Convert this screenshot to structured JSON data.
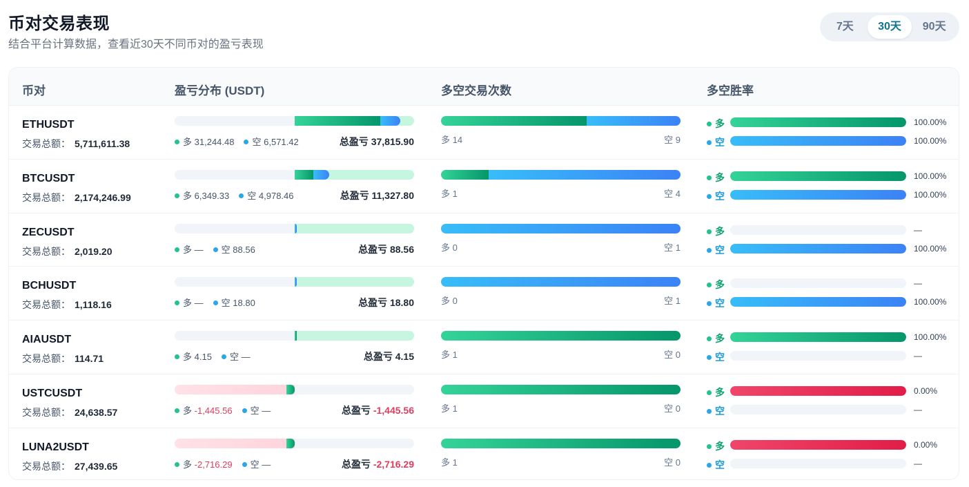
{
  "header": {
    "title": "币对交易表现",
    "subtitle": "结合平台计算数据，查看近30天不同币对的盈亏表现"
  },
  "range": {
    "options": [
      "7天",
      "30天",
      "90天"
    ],
    "active": "30天"
  },
  "table": {
    "columns": [
      "币对",
      "盈亏分布 (USDT)",
      "多空交易次数",
      "多空胜率"
    ],
    "volume_label": "交易总额：",
    "long_label": "多",
    "short_label": "空",
    "total_label": "总盈亏",
    "rows": [
      {
        "pair": "ETHUSDT",
        "volume": "5,711,611.38",
        "long_pnl": "31,244.48",
        "short_pnl": "6,571.42",
        "total_pnl": "37,815.90",
        "long_pnl_value": 31244.48,
        "short_pnl_value": 6571.42,
        "long_count": 14,
        "short_count": 9,
        "long_win": "100.00%",
        "short_win": "100.00%",
        "long_win_value": 100,
        "short_win_value": 100
      },
      {
        "pair": "BTCUSDT",
        "volume": "2,174,246.99",
        "long_pnl": "6,349.33",
        "short_pnl": "4,978.46",
        "total_pnl": "11,327.80",
        "long_pnl_value": 6349.33,
        "short_pnl_value": 4978.46,
        "long_count": 1,
        "short_count": 4,
        "long_win": "100.00%",
        "short_win": "100.00%",
        "long_win_value": 100,
        "short_win_value": 100
      },
      {
        "pair": "ZECUSDT",
        "volume": "2,019.20",
        "long_pnl": "—",
        "short_pnl": "88.56",
        "total_pnl": "88.56",
        "long_pnl_value": 0,
        "short_pnl_value": 88.56,
        "long_count": 0,
        "short_count": 1,
        "long_win": "—",
        "short_win": "100.00%",
        "long_win_value": null,
        "short_win_value": 100
      },
      {
        "pair": "BCHUSDT",
        "volume": "1,118.16",
        "long_pnl": "—",
        "short_pnl": "18.80",
        "total_pnl": "18.80",
        "long_pnl_value": 0,
        "short_pnl_value": 18.8,
        "long_count": 0,
        "short_count": 1,
        "long_win": "—",
        "short_win": "100.00%",
        "long_win_value": null,
        "short_win_value": 100
      },
      {
        "pair": "AIAUSDT",
        "volume": "114.71",
        "long_pnl": "4.15",
        "short_pnl": "—",
        "total_pnl": "4.15",
        "long_pnl_value": 4.15,
        "short_pnl_value": 0,
        "long_count": 1,
        "short_count": 0,
        "long_win": "100.00%",
        "short_win": "—",
        "long_win_value": 100,
        "short_win_value": null
      },
      {
        "pair": "USTCUSDT",
        "volume": "24,638.57",
        "long_pnl": "-1,445.56",
        "short_pnl": "—",
        "total_pnl": "-1,445.56",
        "long_pnl_value": -1445.56,
        "short_pnl_value": 0,
        "long_count": 1,
        "short_count": 0,
        "long_win": "0.00%",
        "short_win": "—",
        "long_win_value": 0,
        "short_win_value": null
      },
      {
        "pair": "LUNA2USDT",
        "volume": "27,439.65",
        "long_pnl": "-2,716.29",
        "short_pnl": "—",
        "total_pnl": "-2,716.29",
        "long_pnl_value": -2716.29,
        "short_pnl_value": 0,
        "long_count": 1,
        "short_count": 0,
        "long_win": "0.00%",
        "short_win": "—",
        "long_win_value": 0,
        "short_win_value": null
      }
    ]
  },
  "colors": {
    "long": "#22c38e",
    "short": "#2aa7e6",
    "loss": "#e23b5c",
    "accent": "#0e7490"
  }
}
